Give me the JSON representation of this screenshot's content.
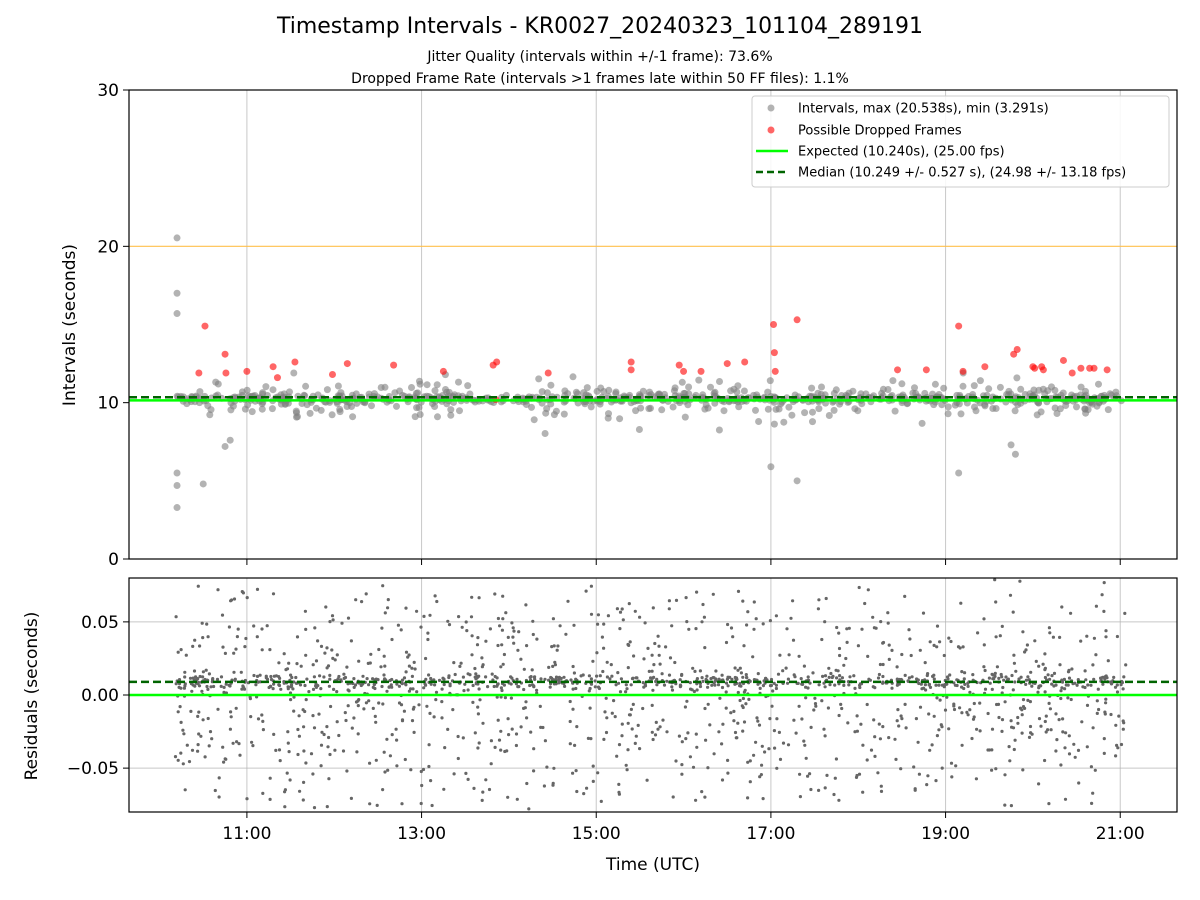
{
  "chart_data": [
    {
      "type": "scatter",
      "title": "Timestamp Intervals - KR0027_20240323_101104_289191",
      "subtitle_lines": [
        "Jitter Quality (intervals within +/-1 frame): 73.6%",
        "Dropped Frame Rate (intervals >1 frames late within 50 FF files): 1.1%"
      ],
      "xlabel": "",
      "ylabel": "Intervals (seconds)",
      "ylim": [
        0,
        30
      ],
      "yticks": [
        "0",
        "10",
        "20",
        "30"
      ],
      "xlim_hours": [
        9.65,
        21.65
      ],
      "x_range_hours": [
        10.18,
        21.07
      ],
      "grid": "vertical",
      "legend_position": "top-right",
      "legend": [
        "Intervals, max (20.538s), min (3.291s)",
        "Possible Dropped Frames",
        "Expected (10.240s), (25.00 fps)",
        "Median (10.249 +/- 0.527 s), (24.98 +/- 13.18 fps)"
      ],
      "reference_lines": {
        "expected": 10.24,
        "median": 10.249,
        "upper": 20.0
      },
      "series": [
        {
          "name": "Intervals, max (20.538s), min (3.291s)",
          "color": "#808080",
          "max": 20.538,
          "min": 3.291,
          "notable_points": [
            {
              "x": 10.2,
              "y": 20.538
            },
            {
              "x": 10.2,
              "y": 17.0
            },
            {
              "x": 10.2,
              "y": 15.7
            },
            {
              "x": 10.2,
              "y": 5.5
            },
            {
              "x": 10.2,
              "y": 4.7
            },
            {
              "x": 10.2,
              "y": 3.291
            },
            {
              "x": 10.5,
              "y": 4.8
            },
            {
              "x": 10.75,
              "y": 7.2
            },
            {
              "x": 17.0,
              "y": 5.9
            },
            {
              "x": 17.3,
              "y": 5.0
            },
            {
              "x": 19.15,
              "y": 5.5
            },
            {
              "x": 19.8,
              "y": 6.7
            },
            {
              "x": 19.75,
              "y": 7.3
            }
          ]
        },
        {
          "name": "Possible Dropped Frames",
          "color": "#ff0000",
          "points": [
            {
              "x": 10.45,
              "y": 11.9
            },
            {
              "x": 10.52,
              "y": 14.9
            },
            {
              "x": 10.75,
              "y": 13.1
            },
            {
              "x": 10.76,
              "y": 11.9
            },
            {
              "x": 11.0,
              "y": 12.0
            },
            {
              "x": 11.3,
              "y": 12.3
            },
            {
              "x": 11.35,
              "y": 11.6
            },
            {
              "x": 11.55,
              "y": 12.6
            },
            {
              "x": 11.98,
              "y": 11.8
            },
            {
              "x": 12.15,
              "y": 12.5
            },
            {
              "x": 12.68,
              "y": 12.4
            },
            {
              "x": 13.25,
              "y": 12.0
            },
            {
              "x": 13.82,
              "y": 12.4
            },
            {
              "x": 13.86,
              "y": 12.6
            },
            {
              "x": 13.85,
              "y": 10.2
            },
            {
              "x": 14.45,
              "y": 11.9
            },
            {
              "x": 15.4,
              "y": 12.6
            },
            {
              "x": 15.4,
              "y": 12.1
            },
            {
              "x": 15.95,
              "y": 12.4
            },
            {
              "x": 16.0,
              "y": 12.0
            },
            {
              "x": 16.2,
              "y": 12.0
            },
            {
              "x": 16.5,
              "y": 12.5
            },
            {
              "x": 16.7,
              "y": 12.6
            },
            {
              "x": 17.03,
              "y": 15.0
            },
            {
              "x": 17.04,
              "y": 13.2
            },
            {
              "x": 17.05,
              "y": 12.0
            },
            {
              "x": 17.3,
              "y": 15.3
            },
            {
              "x": 18.45,
              "y": 12.1
            },
            {
              "x": 18.78,
              "y": 12.1
            },
            {
              "x": 19.15,
              "y": 14.9
            },
            {
              "x": 19.2,
              "y": 12.0
            },
            {
              "x": 19.45,
              "y": 12.3
            },
            {
              "x": 19.78,
              "y": 13.1
            },
            {
              "x": 19.82,
              "y": 13.4
            },
            {
              "x": 20.0,
              "y": 12.3
            },
            {
              "x": 20.02,
              "y": 12.2
            },
            {
              "x": 20.1,
              "y": 12.3
            },
            {
              "x": 20.12,
              "y": 12.1
            },
            {
              "x": 20.35,
              "y": 12.7
            },
            {
              "x": 20.45,
              "y": 11.9
            },
            {
              "x": 20.55,
              "y": 12.2
            },
            {
              "x": 20.65,
              "y": 12.2
            },
            {
              "x": 20.7,
              "y": 12.2
            },
            {
              "x": 20.85,
              "y": 12.1
            }
          ]
        },
        {
          "name": "Expected (10.240s), (25.00 fps)",
          "color": "#00ff00",
          "value": 10.24
        },
        {
          "name": "Median (10.249 +/- 0.527 s), (24.98 +/- 13.18 fps)",
          "color": "#006400",
          "value": 10.249
        }
      ]
    },
    {
      "type": "scatter",
      "xlabel": "Time (UTC)",
      "ylabel": "Residuals (seconds)",
      "ylim": [
        -0.08,
        0.08
      ],
      "yticks": [
        "−0.05",
        "0.00",
        "0.05"
      ],
      "yticks_values": [
        -0.05,
        0.0,
        0.05
      ],
      "xticks": [
        "11:00",
        "13:00",
        "15:00",
        "17:00",
        "19:00",
        "21:00"
      ],
      "xticks_hours": [
        11,
        13,
        15,
        17,
        19,
        21
      ],
      "grid": "both",
      "reference_lines": {
        "zero": 0.0,
        "median_offset": 0.009
      },
      "series": [
        {
          "name": "",
          "color": "#666666",
          "note": "dense residual scatter between -0.08 and 0.08 s"
        }
      ]
    }
  ],
  "colors": {
    "interval_points": "#808080",
    "dropped_points": "#ff0000",
    "expected_line": "#00ff00",
    "median_line": "#006400",
    "upper_line": "#ffc04d",
    "grid": "#b0b0b0"
  }
}
